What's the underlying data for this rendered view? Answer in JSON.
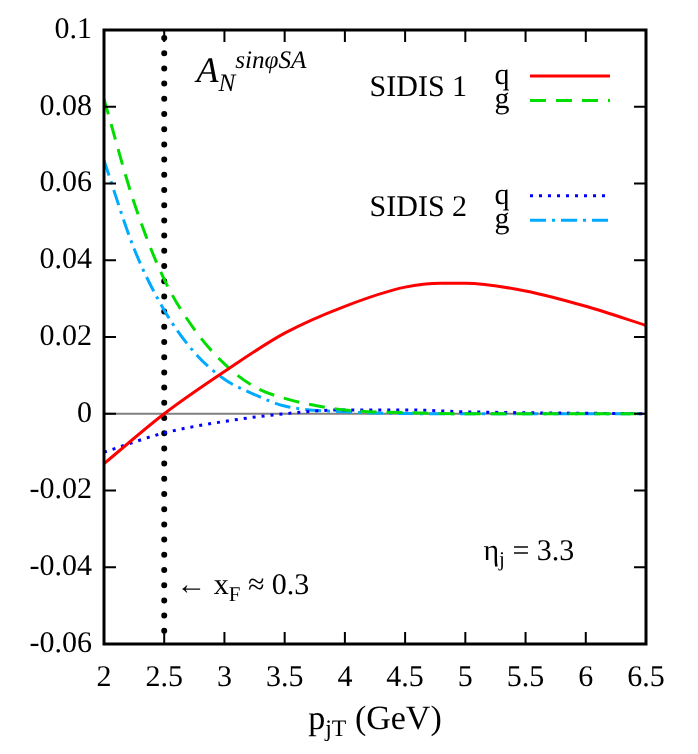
{
  "chart_data": {
    "type": "line",
    "xlabel": "p$_{jT}$ (GeV)",
    "xlim": [
      2,
      6.5
    ],
    "xticks": [
      2,
      2.5,
      3,
      3.5,
      4,
      4.5,
      5,
      5.5,
      6,
      6.5
    ],
    "ylim": [
      -0.06,
      0.1
    ],
    "yticks": [
      -0.06,
      -0.04,
      -0.02,
      0,
      0.02,
      0.04,
      0.06,
      0.08,
      0.1
    ],
    "grid": false,
    "legend": "top right",
    "marker": "none",
    "series": [
      {
        "name": "q",
        "color": "#ff0000",
        "line_style": "solid",
        "x": [
          2,
          2.5,
          3,
          3.5,
          4,
          4.5,
          4.8,
          5,
          5.5,
          6,
          6.5
        ],
        "values": [
          -0.013,
          0,
          0.011,
          0.021,
          0.028,
          0.033,
          0.034,
          0.034,
          0.032,
          0.028,
          0.023
        ]
      },
      {
        "name": "g",
        "color": "#00dd00",
        "line_style": "dashed",
        "x": [
          2,
          2.25,
          2.5,
          2.75,
          3,
          3.25,
          3.5,
          4,
          4.5,
          5,
          6.5
        ],
        "values": [
          0.082,
          0.055,
          0.035,
          0.022,
          0.013,
          0.007,
          0.004,
          0.001,
          0.0003,
          0,
          0
        ]
      },
      {
        "name": "q",
        "color": "#0000ff",
        "line_style": "dotted",
        "x": [
          2,
          2.5,
          3,
          3.5,
          4,
          4.5,
          5,
          6.5
        ],
        "values": [
          -0.01,
          -0.005,
          -0.002,
          0,
          0.001,
          0.001,
          0.0005,
          0
        ]
      },
      {
        "name": "g",
        "color": "#00aaff",
        "line_style": "dashdot",
        "x": [
          2,
          2.25,
          2.5,
          2.75,
          3,
          3.25,
          3.5,
          4,
          5,
          6.5
        ],
        "values": [
          0.066,
          0.043,
          0.027,
          0.016,
          0.009,
          0.005,
          0.002,
          0.0005,
          0,
          0
        ]
      }
    ],
    "ref_lines": [
      {
        "axis": "x",
        "value": 2.5,
        "color": "#000000",
        "line_style": "dotted"
      },
      {
        "axis": "y",
        "value": 0,
        "color": "#808080",
        "line_style": "solid"
      }
    ],
    "annotations": [
      "A$_{N}$$^{sinφSA}$",
      "SIDIS 1",
      "SIDIS 2",
      {
        "text": "← x$_{F}$ ≈ 0.3",
        "x": 2.5,
        "y": -0.045
      },
      "η$_{j}$ = 3.3"
    ]
  }
}
